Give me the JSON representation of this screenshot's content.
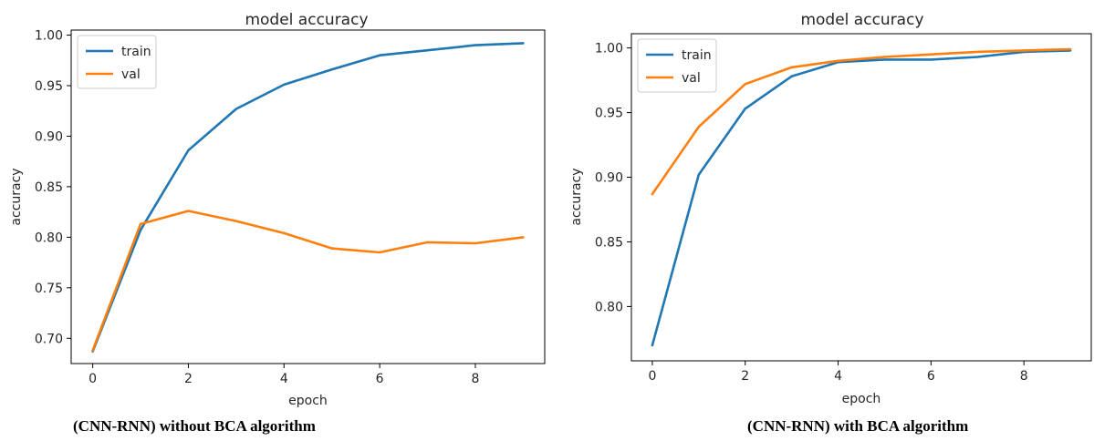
{
  "chart_data": [
    {
      "type": "line",
      "title": "model accuracy",
      "xlabel": "epoch",
      "ylabel": "accuracy",
      "x": [
        0,
        1,
        2,
        3,
        4,
        5,
        6,
        7,
        8,
        9
      ],
      "xticks": [
        0,
        2,
        4,
        6,
        8
      ],
      "yticks": [
        0.7,
        0.75,
        0.8,
        0.85,
        0.9,
        0.95,
        1.0
      ],
      "xlim": [
        -0.45,
        9.45
      ],
      "ylim": [
        0.675,
        1.005
      ],
      "grid": false,
      "legend": "top-left",
      "series": [
        {
          "name": "train",
          "color": "#1f77b4",
          "values": [
            0.687,
            0.807,
            0.886,
            0.927,
            0.951,
            0.966,
            0.98,
            0.985,
            0.99,
            0.992
          ]
        },
        {
          "name": "val",
          "color": "#ff7f0e",
          "values": [
            0.688,
            0.813,
            0.826,
            0.816,
            0.804,
            0.789,
            0.785,
            0.795,
            0.794,
            0.8
          ]
        }
      ],
      "caption": "(CNN-RNN) without BCA algorithm"
    },
    {
      "type": "line",
      "title": "model accuracy",
      "xlabel": "epoch",
      "ylabel": "accuracy",
      "x": [
        0,
        1,
        2,
        3,
        4,
        5,
        6,
        7,
        8,
        9
      ],
      "xticks": [
        0,
        2,
        4,
        6,
        8
      ],
      "yticks": [
        0.8,
        0.85,
        0.9,
        0.95,
        1.0
      ],
      "xlim": [
        -0.45,
        9.45
      ],
      "ylim": [
        0.758,
        1.011
      ],
      "grid": false,
      "legend": "top-left",
      "series": [
        {
          "name": "train",
          "color": "#1f77b4",
          "values": [
            0.77,
            0.902,
            0.953,
            0.978,
            0.989,
            0.991,
            0.991,
            0.993,
            0.997,
            0.998
          ]
        },
        {
          "name": "val",
          "color": "#ff7f0e",
          "values": [
            0.887,
            0.939,
            0.972,
            0.985,
            0.99,
            0.993,
            0.995,
            0.997,
            0.998,
            0.999
          ]
        }
      ],
      "caption": "(CNN-RNN) with  BCA algorithm"
    }
  ]
}
